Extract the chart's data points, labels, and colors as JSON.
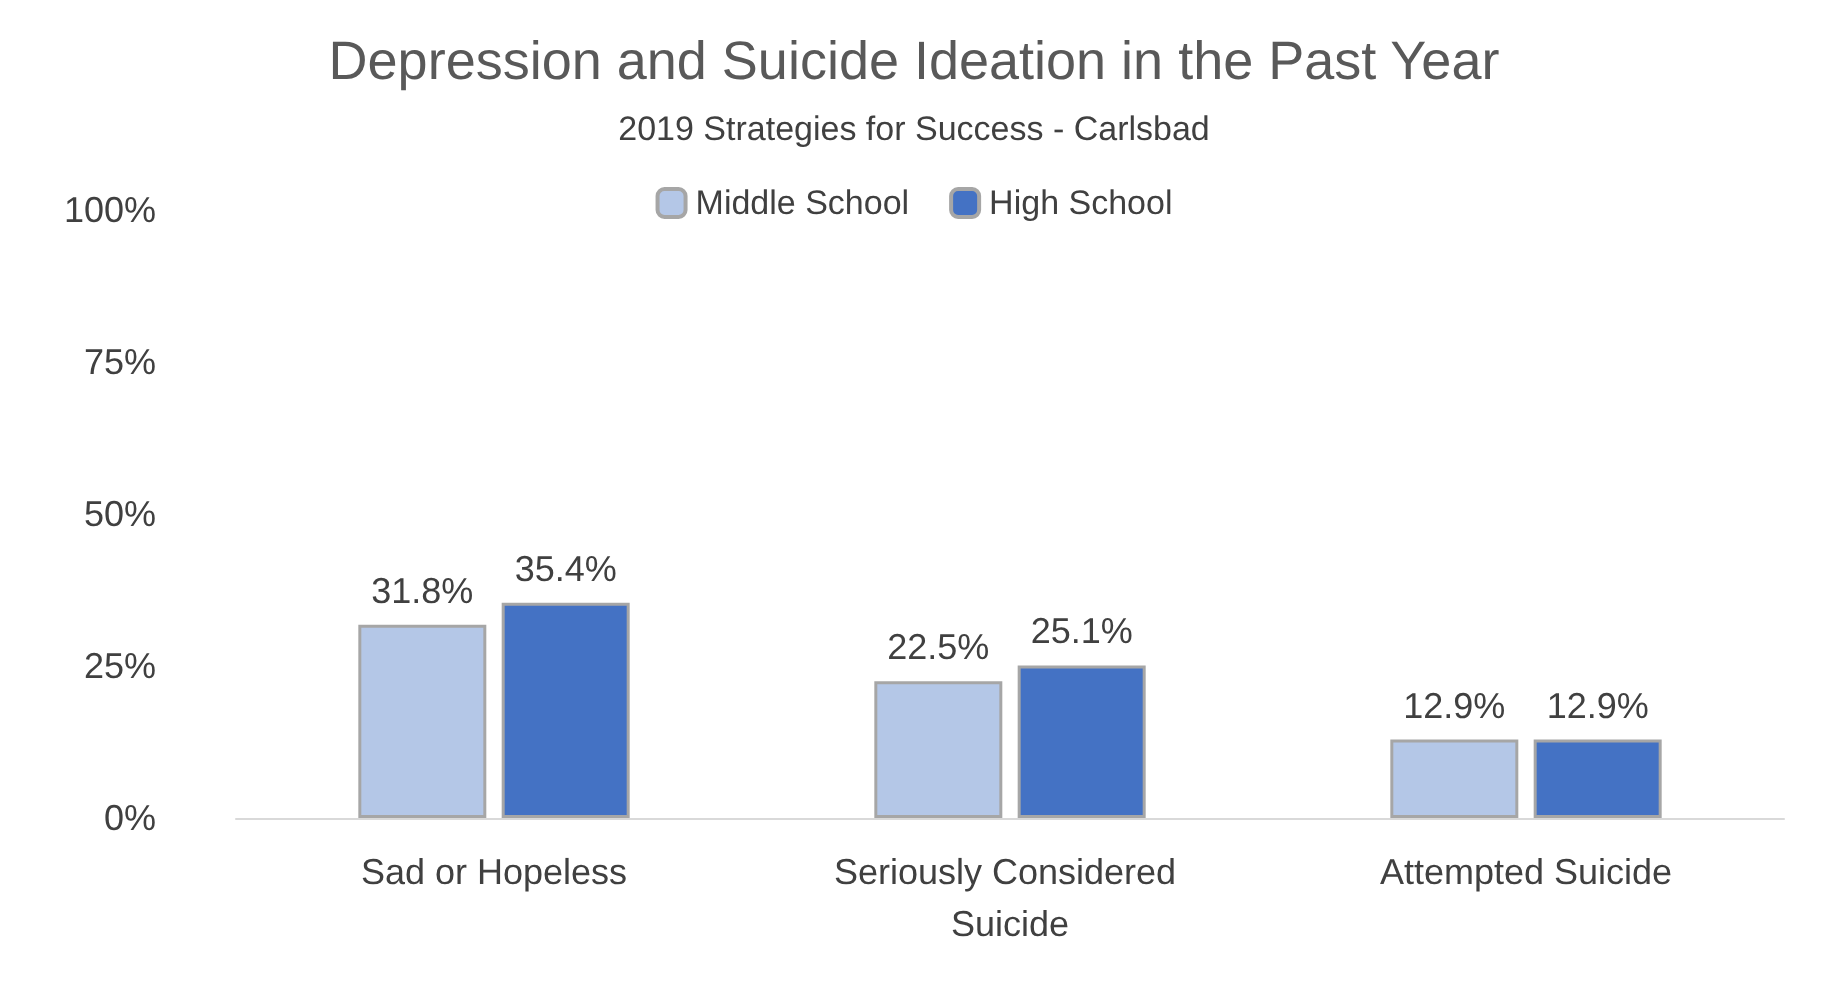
{
  "chart_data": {
    "type": "bar",
    "title": "Depression and Suicide Ideation in the Past Year",
    "subtitle": "2019 Strategies for Success - Carlsbad",
    "categories": [
      "Sad or Hopeless",
      "Seriously Considered Suicide",
      "Attempted Suicide"
    ],
    "series": [
      {
        "name": "Middle School",
        "color": "#b4c7e7",
        "values": [
          31.8,
          22.5,
          12.9
        ],
        "value_labels": [
          "31.8%",
          "22.5%",
          "12.9%"
        ]
      },
      {
        "name": "High School",
        "color": "#4472c4",
        "values": [
          35.4,
          25.1,
          12.9
        ],
        "value_labels": [
          "35.4%",
          "25.1%",
          "12.9%"
        ]
      }
    ],
    "ylim": [
      0,
      100
    ],
    "yticks": [
      {
        "value": 0,
        "label": "0%"
      },
      {
        "value": 25,
        "label": "25%"
      },
      {
        "value": 50,
        "label": "50%"
      },
      {
        "value": 75,
        "label": "75%"
      },
      {
        "value": 100,
        "label": "100%"
      }
    ],
    "grid": false,
    "legend": "top"
  }
}
